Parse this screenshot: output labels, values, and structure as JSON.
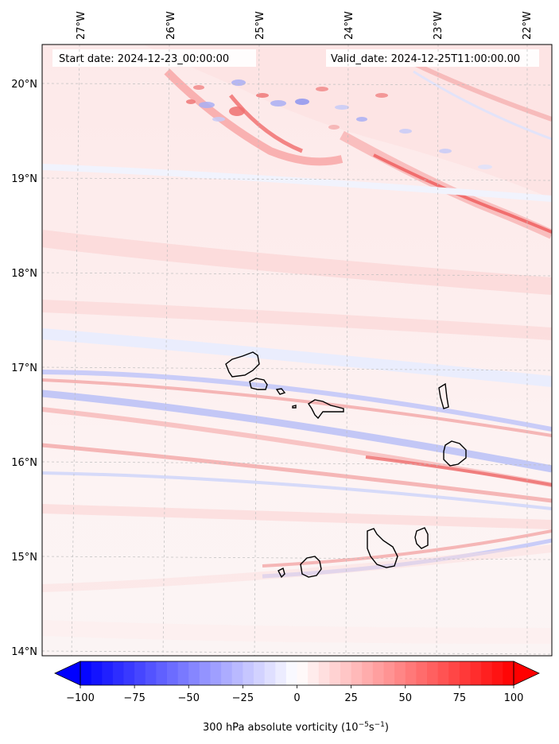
{
  "map": {
    "start_text": "Start date: 2024-12-23_00:00:00",
    "valid_text": "Valid_date: 2024-12-25T11:00:00.00",
    "lon_labels": [
      "27°W",
      "26°W",
      "25°W",
      "24°W",
      "23°W",
      "22°W"
    ],
    "lat_labels": [
      "20°N",
      "19°N",
      "18°N",
      "17°N",
      "16°N",
      "15°N",
      "14°N"
    ],
    "projection_graticule": "slightly tilted lon/lat dashed grid",
    "field": "300 hPa absolute vorticity",
    "islands": [
      "Santo Antão",
      "São Vicente",
      "Santa Luzia",
      "Branco",
      "São Nicolau",
      "Sal",
      "Boa Vista",
      "Maio",
      "Santiago",
      "Fogo",
      "Brava"
    ]
  },
  "colorbar": {
    "label": "300 hPa absolute vorticity (10$^{-5}$s$^{-1}$)",
    "label_base": "300 hPa absolute vorticity (10",
    "label_exp1": "−5",
    "label_mid": "s",
    "label_exp2": "−1",
    "label_end": ")",
    "ticks": [
      "−100",
      "−75",
      "−50",
      "−25",
      "0",
      "25",
      "50",
      "75",
      "100"
    ],
    "tick_values": [
      -100,
      -75,
      -50,
      -25,
      0,
      25,
      50,
      75,
      100
    ],
    "range": [
      -100,
      100
    ],
    "colormap": "bwr",
    "extend": "both",
    "colors": {
      "negative": "#0000ff",
      "zero": "#ffffff",
      "positive": "#ff0000"
    }
  }
}
